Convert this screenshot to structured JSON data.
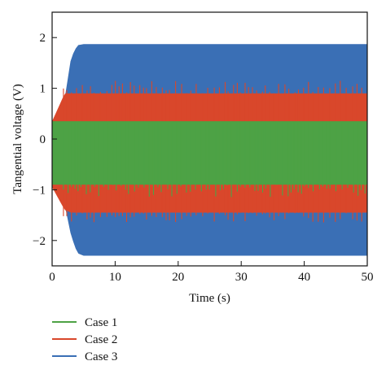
{
  "chart_data": {
    "type": "line",
    "xlabel": "Time (s)",
    "ylabel": "Tangential voltage (V)",
    "xlim": [
      0,
      50
    ],
    "ylim": [
      -2.5,
      2.5
    ],
    "x_ticks": [
      0,
      10,
      20,
      30,
      40,
      50
    ],
    "x_tick_labels": [
      "0",
      "10",
      "20",
      "30",
      "40",
      "50"
    ],
    "y_ticks": [
      -2,
      -1,
      0,
      1,
      2
    ],
    "y_tick_labels": [
      "−2",
      "−1",
      "0",
      "1",
      "2"
    ],
    "grid": false,
    "legend_position": "below",
    "series": [
      {
        "name": "Case 3",
        "color": "#3a6fb5",
        "envelope": {
          "x": [
            0,
            1,
            2,
            3,
            4,
            5,
            50
          ],
          "upper": [
            0.3,
            0.35,
            0.8,
            1.6,
            1.85,
            1.87,
            1.87
          ],
          "lower": [
            -0.95,
            -1.1,
            -1.3,
            -1.9,
            -2.25,
            -2.3,
            -2.3
          ]
        }
      },
      {
        "name": "Case 2",
        "color": "#d9472b",
        "envelope": {
          "x": [
            0,
            2,
            3,
            50
          ],
          "upper": [
            0.35,
            0.9,
            0.9,
            0.9
          ],
          "lower": [
            -0.95,
            -1.4,
            -1.45,
            -1.45
          ]
        },
        "spike_top": 1.15,
        "spike_bottom": -1.65
      },
      {
        "name": "Case 1",
        "color": "#4da245",
        "envelope": {
          "x": [
            0,
            50
          ],
          "upper": [
            0.35,
            0.35
          ],
          "lower": [
            -0.9,
            -0.9
          ]
        },
        "spike_top": 0.35,
        "spike_bottom": -1.15
      }
    ],
    "legend": [
      "Case 1",
      "Case 2",
      "Case 3"
    ]
  }
}
